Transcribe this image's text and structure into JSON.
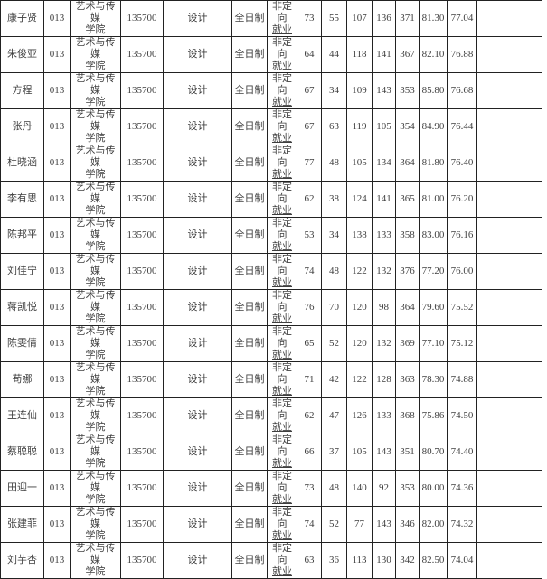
{
  "colors": {
    "text": "#3f3f3f",
    "border": "#222222",
    "background": "#ffffff"
  },
  "table": {
    "row_count": 16,
    "rows": [
      [
        "康子贤",
        "013",
        "艺术与传媒学院",
        "135700",
        "设计",
        "全日制",
        "非定向就业",
        "73",
        "55",
        "107",
        "136",
        "371",
        "81.30",
        "77.04",
        ""
      ],
      [
        "朱俊亚",
        "013",
        "艺术与传媒学院",
        "135700",
        "设计",
        "全日制",
        "非定向就业",
        "64",
        "44",
        "118",
        "141",
        "367",
        "82.10",
        "76.88",
        ""
      ],
      [
        "方程",
        "013",
        "艺术与传媒学院",
        "135700",
        "设计",
        "全日制",
        "非定向就业",
        "67",
        "34",
        "109",
        "143",
        "353",
        "85.80",
        "76.68",
        ""
      ],
      [
        "张丹",
        "013",
        "艺术与传媒学院",
        "135700",
        "设计",
        "全日制",
        "非定向就业",
        "67",
        "63",
        "119",
        "105",
        "354",
        "84.90",
        "76.44",
        ""
      ],
      [
        "杜晓涵",
        "013",
        "艺术与传媒学院",
        "135700",
        "设计",
        "全日制",
        "非定向就业",
        "77",
        "48",
        "105",
        "134",
        "364",
        "81.80",
        "76.40",
        ""
      ],
      [
        "李有思",
        "013",
        "艺术与传媒学院",
        "135700",
        "设计",
        "全日制",
        "非定向就业",
        "62",
        "38",
        "124",
        "141",
        "365",
        "81.00",
        "76.20",
        ""
      ],
      [
        "陈邦平",
        "013",
        "艺术与传媒学院",
        "135700",
        "设计",
        "全日制",
        "非定向就业",
        "53",
        "34",
        "138",
        "133",
        "358",
        "83.00",
        "76.16",
        ""
      ],
      [
        "刘佳宁",
        "013",
        "艺术与传媒学院",
        "135700",
        "设计",
        "全日制",
        "非定向就业",
        "74",
        "48",
        "122",
        "132",
        "376",
        "77.20",
        "76.00",
        ""
      ],
      [
        "蒋凯悦",
        "013",
        "艺术与传媒学院",
        "135700",
        "设计",
        "全日制",
        "非定向就业",
        "76",
        "70",
        "120",
        "98",
        "364",
        "79.60",
        "75.52",
        ""
      ],
      [
        "陈雯倩",
        "013",
        "艺术与传媒学院",
        "135700",
        "设计",
        "全日制",
        "非定向就业",
        "65",
        "52",
        "120",
        "132",
        "369",
        "77.10",
        "75.12",
        ""
      ],
      [
        "苟娜",
        "013",
        "艺术与传媒学院",
        "135700",
        "设计",
        "全日制",
        "非定向就业",
        "71",
        "42",
        "122",
        "128",
        "363",
        "78.30",
        "74.88",
        ""
      ],
      [
        "王连仙",
        "013",
        "艺术与传媒学院",
        "135700",
        "设计",
        "全日制",
        "非定向就业",
        "62",
        "47",
        "126",
        "133",
        "368",
        "75.86",
        "74.50",
        ""
      ],
      [
        "蔡聪聪",
        "013",
        "艺术与传媒学院",
        "135700",
        "设计",
        "全日制",
        "非定向就业",
        "66",
        "37",
        "105",
        "143",
        "351",
        "80.70",
        "74.40",
        ""
      ],
      [
        "田迎一",
        "013",
        "艺术与传媒学院",
        "135700",
        "设计",
        "全日制",
        "非定向就业",
        "73",
        "48",
        "140",
        "92",
        "353",
        "80.00",
        "74.36",
        ""
      ],
      [
        "张建菲",
        "013",
        "艺术与传媒学院",
        "135700",
        "设计",
        "全日制",
        "非定向就业",
        "74",
        "52",
        "77",
        "143",
        "346",
        "82.00",
        "74.32",
        ""
      ],
      [
        "刘芋杏",
        "013",
        "艺术与传媒学院",
        "135700",
        "设计",
        "全日制",
        "非定向就业",
        "63",
        "36",
        "113",
        "130",
        "342",
        "82.50",
        "74.04",
        ""
      ]
    ]
  }
}
